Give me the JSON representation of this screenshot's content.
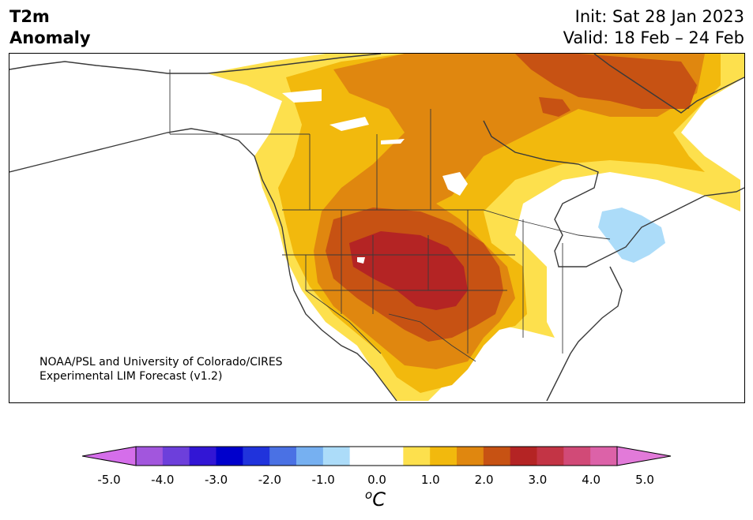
{
  "header": {
    "variable": "T2m",
    "product": "Anomaly",
    "init": "Init: Sat 28 Jan 2023",
    "valid": "Valid: 18 Feb – 24 Feb"
  },
  "credit": {
    "line1": "NOAA/PSL and University of Colorado/CIRES",
    "line2": "Experimental LIM Forecast (v1.2)"
  },
  "colorbar": {
    "ticks": [
      "-5.0",
      "-4.0",
      "-3.0",
      "-2.0",
      "-1.0",
      "0.0",
      "1.0",
      "2.0",
      "3.0",
      "4.0",
      "5.0"
    ],
    "unit_super": "o",
    "unit": "C",
    "colors": [
      "#d56eea",
      "#a256dd",
      "#6d3fdb",
      "#3216d5",
      "#0000cc",
      "#2033dc",
      "#4a71e4",
      "#76b0f1",
      "#acdcf9",
      "#ffffff",
      "#ffffff",
      "#fde04d",
      "#f2b90d",
      "#e0870f",
      "#c75213",
      "#b42424",
      "#c33445",
      "#d14a77",
      "#dc62a8",
      "#e27ad9"
    ]
  },
  "legend_colors": {
    "land": "#ffffff",
    "border": "#3a3a3a",
    "anom_0_5_1": "#fde04d",
    "anom_1_1_5": "#f2b90d",
    "anom_1_5_2": "#e0870f",
    "anom_2_2_5": "#c75213",
    "anom_2_5_3": "#b42424",
    "anom_neg_0_5_neg_1": "#acdcf9"
  }
}
